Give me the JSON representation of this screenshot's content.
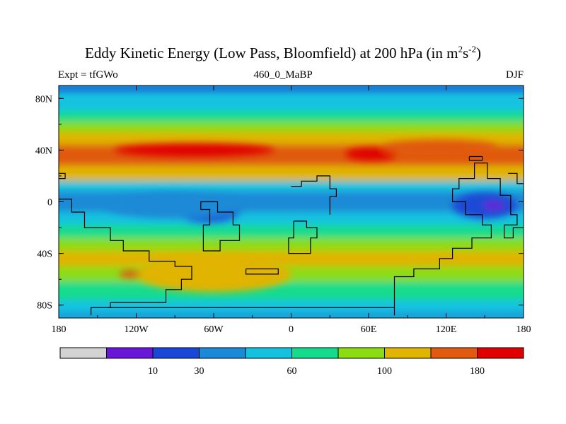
{
  "figure": {
    "title_main": "Eddy Kinetic Energy (Low Pass, Bloomfield) at 200 hPa (in m",
    "title_sup1": "2",
    "title_mid": "s",
    "title_sup2": "-2",
    "title_end": ")",
    "left_label": "Expt = tfGWo",
    "center_label": "460_0_MaBP",
    "right_label": "DJF"
  },
  "axes": {
    "lon_ticks": [
      "180",
      "120W",
      "60W",
      "0",
      "60E",
      "120E",
      "180"
    ],
    "lat_ticks": [
      "80N",
      "40N",
      "0",
      "40S",
      "80S"
    ]
  },
  "colorbar": {
    "colors": [
      "#d3d3d3",
      "#6a16d8",
      "#1a48d6",
      "#1a8ad6",
      "#14c2e0",
      "#14dc8c",
      "#8cdc14",
      "#e0b400",
      "#e05a10",
      "#e00000"
    ],
    "labels": [
      {
        "text": "10",
        "after_box": 2
      },
      {
        "text": "30",
        "after_box": 3
      },
      {
        "text": "60",
        "after_box": 5
      },
      {
        "text": "100",
        "after_box": 7
      },
      {
        "text": "180",
        "after_box": 9
      }
    ]
  },
  "chart_data": {
    "type": "heatmap",
    "title": "Eddy Kinetic Energy (Low Pass, Bloomfield) at 200 hPa (in m2s-2)",
    "xlabel": "",
    "ylabel": "",
    "xlim": [
      -180,
      180
    ],
    "ylim": [
      -90,
      90
    ],
    "levels": [
      10,
      30,
      60,
      100,
      180
    ],
    "bands": [
      {
        "lat": [
          85,
          90
        ],
        "band": 2
      },
      {
        "lat": [
          70,
          85
        ],
        "band": 4
      },
      {
        "lat": [
          62,
          70
        ],
        "band": 5
      },
      {
        "lat": [
          54,
          62
        ],
        "band": 6
      },
      {
        "lat": [
          44,
          54
        ],
        "band": 7
      },
      {
        "lat": [
          28,
          44
        ],
        "band": 8
      },
      {
        "lat": [
          16,
          28
        ],
        "band": 7
      },
      {
        "lat": [
          8,
          16
        ],
        "band": 4
      },
      {
        "lat": [
          -8,
          8
        ],
        "band": 3
      },
      {
        "lat": [
          -18,
          -8
        ],
        "band": 4
      },
      {
        "lat": [
          -28,
          -18
        ],
        "band": 5
      },
      {
        "lat": [
          -38,
          -28
        ],
        "band": 6
      },
      {
        "lat": [
          -50,
          -38
        ],
        "band": 7
      },
      {
        "lat": [
          -62,
          -50
        ],
        "band": 6
      },
      {
        "lat": [
          -76,
          -62
        ],
        "band": 5
      },
      {
        "lat": [
          -86,
          -76
        ],
        "band": 4
      },
      {
        "lat": [
          -90,
          -86
        ],
        "band": 3
      }
    ],
    "patches": [
      {
        "lon": -75,
        "lat": 40,
        "rx": 62,
        "ry": 5,
        "band": 9
      },
      {
        "lon": 62,
        "lat": 37,
        "rx": 20,
        "ry": 5,
        "band": 9
      },
      {
        "lon": 115,
        "lat": 42,
        "rx": 45,
        "ry": 6,
        "band": 8
      },
      {
        "lon": -65,
        "lat": -7,
        "rx": 25,
        "ry": 9,
        "band": 2
      },
      {
        "lon": -90,
        "lat": -3,
        "rx": 55,
        "ry": 10,
        "band": 3
      },
      {
        "lon": 150,
        "lat": -3,
        "rx": 25,
        "ry": 10,
        "band": 2
      },
      {
        "lon": 157,
        "lat": -3,
        "rx": 8,
        "ry": 3,
        "band": 1
      },
      {
        "lon": -60,
        "lat": -56,
        "rx": 60,
        "ry": 14,
        "band": 7
      },
      {
        "lon": -125,
        "lat": -56,
        "rx": 8,
        "ry": 3,
        "band": 8
      }
    ],
    "coast": [
      [
        [
          -155,
          -88
        ],
        [
          -155,
          -82
        ],
        [
          -140,
          -82
        ],
        [
          -140,
          -78
        ],
        [
          -97,
          -78
        ],
        [
          -97,
          -68
        ],
        [
          -85,
          -68
        ],
        [
          -85,
          -60
        ],
        [
          -77,
          -60
        ],
        [
          -77,
          -50
        ],
        [
          -90,
          -50
        ],
        [
          -90,
          -46
        ],
        [
          -110,
          -46
        ],
        [
          -110,
          -38
        ],
        [
          -130,
          -38
        ],
        [
          -130,
          -30
        ],
        [
          -140,
          -30
        ],
        [
          -140,
          -20
        ],
        [
          -160,
          -20
        ],
        [
          -160,
          -8
        ],
        [
          -170,
          -8
        ],
        [
          -170,
          2
        ],
        [
          -180,
          2
        ]
      ],
      [
        [
          -180,
          22
        ],
        [
          -175,
          22
        ],
        [
          -175,
          18
        ],
        [
          -180,
          18
        ]
      ],
      [
        [
          -63,
          0
        ],
        [
          -57,
          0
        ],
        [
          -57,
          -8
        ],
        [
          -45,
          -8
        ],
        [
          -45,
          -18
        ],
        [
          -40,
          -18
        ],
        [
          -40,
          -30
        ],
        [
          -55,
          -30
        ],
        [
          -55,
          -38
        ],
        [
          -68,
          -38
        ],
        [
          -68,
          -18
        ],
        [
          -63,
          -18
        ],
        [
          -63,
          -6
        ],
        [
          -70,
          -6
        ],
        [
          -70,
          0
        ],
        [
          -63,
          0
        ]
      ],
      [
        [
          -35,
          -52
        ],
        [
          -10,
          -52
        ],
        [
          -10,
          -56
        ],
        [
          -35,
          -56
        ],
        [
          -35,
          -52
        ]
      ],
      [
        [
          0,
          12
        ],
        [
          8,
          12
        ],
        [
          8,
          16
        ],
        [
          20,
          16
        ],
        [
          20,
          20
        ],
        [
          30,
          20
        ],
        [
          30,
          10
        ],
        [
          35,
          10
        ],
        [
          35,
          4
        ],
        [
          30,
          4
        ],
        [
          30,
          -10
        ]
      ],
      [
        [
          2,
          -15
        ],
        [
          12,
          -15
        ],
        [
          12,
          -20
        ],
        [
          20,
          -20
        ],
        [
          20,
          -28
        ],
        [
          15,
          -28
        ],
        [
          15,
          -40
        ],
        [
          -2,
          -40
        ],
        [
          -2,
          -28
        ],
        [
          2,
          -28
        ],
        [
          2,
          -15
        ]
      ],
      [
        [
          80,
          -88
        ],
        [
          80,
          -58
        ],
        [
          95,
          -58
        ],
        [
          95,
          -52
        ],
        [
          115,
          -52
        ],
        [
          115,
          -44
        ],
        [
          125,
          -44
        ],
        [
          125,
          -36
        ],
        [
          140,
          -36
        ],
        [
          140,
          -28
        ],
        [
          155,
          -28
        ],
        [
          155,
          -18
        ],
        [
          148,
          -18
        ],
        [
          148,
          -10
        ],
        [
          135,
          -10
        ],
        [
          135,
          0
        ],
        [
          125,
          0
        ],
        [
          125,
          10
        ],
        [
          130,
          10
        ],
        [
          130,
          18
        ],
        [
          142,
          18
        ],
        [
          142,
          30
        ],
        [
          152,
          30
        ],
        [
          152,
          18
        ],
        [
          162,
          18
        ],
        [
          162,
          5
        ],
        [
          170,
          5
        ],
        [
          170,
          -10
        ],
        [
          175,
          -10
        ],
        [
          175,
          -18
        ],
        [
          165,
          -18
        ],
        [
          165,
          -28
        ],
        [
          172,
          -28
        ],
        [
          172,
          -20
        ],
        [
          180,
          -20
        ]
      ],
      [
        [
          138,
          35
        ],
        [
          148,
          35
        ],
        [
          148,
          32
        ],
        [
          138,
          32
        ],
        [
          138,
          35
        ]
      ],
      [
        [
          168,
          22
        ],
        [
          175,
          22
        ],
        [
          175,
          14
        ],
        [
          180,
          14
        ]
      ],
      [
        [
          -142,
          -82
        ],
        [
          80,
          -82
        ]
      ]
    ]
  }
}
